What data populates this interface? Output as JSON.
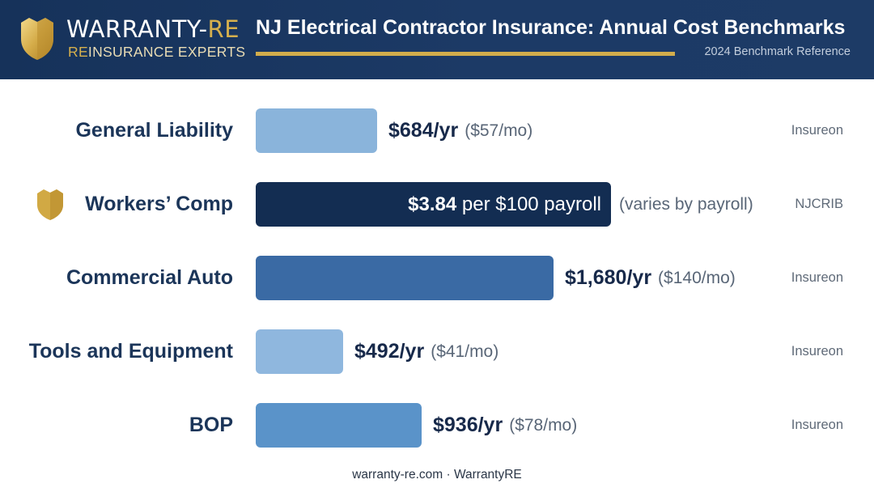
{
  "brand": {
    "name_main": "WARRANTY-",
    "name_accent": "RE",
    "tagline_accent": "RE",
    "tagline_rest": "INSURANCE EXPERTS"
  },
  "header": {
    "title": "NJ Electrical Contractor Insurance: Annual Cost Benchmarks",
    "subtitle": "2024 Benchmark Reference"
  },
  "colors": {
    "header_bg": "#1c3a66",
    "gold": "#d2ad4c",
    "bar_light": "#8ab4db",
    "bar_dark": "#132d52",
    "bar_mid": "#3a6aa4",
    "bar_lighter": "#8fb7de",
    "bar_medium": "#5a93c9"
  },
  "chart_data": {
    "type": "bar",
    "orientation": "horizontal",
    "title": "NJ Electrical Contractor Insurance: Annual Cost Benchmarks",
    "subtitle": "2024 Benchmark Reference",
    "xlabel": "",
    "ylabel": "",
    "grid": false,
    "legend": "none",
    "categories": [
      "General Liability",
      "Workers’ Comp",
      "Commercial Auto",
      "Tools and Equipment",
      "BOP"
    ],
    "series": [
      {
        "values": [
          684,
          null,
          1680,
          492,
          936
        ]
      }
    ],
    "rows": [
      {
        "category": "General Liability",
        "annual": 684,
        "label_value": "$684/yr",
        "label_note": "($57/mo)",
        "source": "Insureon",
        "color": "#8ab4db",
        "icon": null
      },
      {
        "category": "Workers’ Comp",
        "annual": null,
        "rate_per_100_payroll": 3.84,
        "label_value": "$3.84",
        "label_value_rest": " per $100 payroll",
        "label_note": "(varies by payroll)",
        "source": "NJCRIB",
        "color": "#132d52",
        "icon": "gold-shield-icon",
        "label_inside": true
      },
      {
        "category": "Commercial Auto",
        "annual": 1680,
        "label_value": "$1,680/yr",
        "label_note": "($140/mo)",
        "source": "Insureon",
        "color": "#3a6aa4",
        "icon": null
      },
      {
        "category": "Tools and Equipment",
        "annual": 492,
        "label_value": "$492/yr",
        "label_note": "($41/mo)",
        "source": "Insureon",
        "color": "#8fb7de",
        "icon": null
      },
      {
        "category": "BOP",
        "annual": 936,
        "label_value": "$936/yr",
        "label_note": "($78/mo)",
        "source": "Insureon",
        "color": "#5a93c9",
        "icon": null
      }
    ]
  },
  "footer": {
    "text": "warranty-re.com · WarrantyRE"
  }
}
